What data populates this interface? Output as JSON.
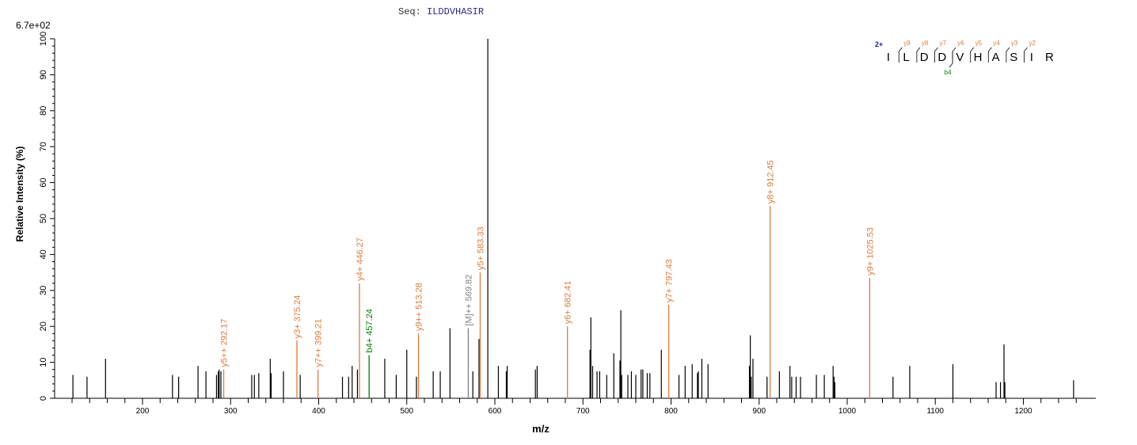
{
  "header": {
    "seq_label": "Seq:",
    "seq_value": "ILDDVHASIR",
    "ymax_label": "6.7e+02"
  },
  "colors": {
    "peak": "#000000",
    "y_ion": "#e07b3a",
    "b_ion": "#008000",
    "precursor": "#808080",
    "charge": "#1a1aa0",
    "axis": "#000000"
  },
  "sequence_annotation": {
    "charge": "2+",
    "residues": [
      "I",
      "L",
      "D",
      "D",
      "V",
      "H",
      "A",
      "S",
      "I",
      "R"
    ],
    "y_labels": [
      "y9",
      "y8",
      "y7",
      "y6",
      "y5",
      "y4",
      "y3",
      "y2"
    ],
    "b_labels": [
      "b4"
    ]
  },
  "chart_data": {
    "type": "bar",
    "title": "Seq: ILDDVHASIR",
    "xlabel": "m/z",
    "ylabel": "Relative   Intensity (%)",
    "xlim": [
      100,
      1290
    ],
    "ylim": [
      0,
      100
    ],
    "x_ticks": [
      200,
      300,
      400,
      500,
      600,
      700,
      800,
      900,
      1000,
      1100,
      1200
    ],
    "y_ticks": [
      0,
      10,
      20,
      30,
      40,
      50,
      60,
      70,
      80,
      90,
      100
    ],
    "max_intensity_label": "6.7e+02",
    "annotated_peaks": [
      {
        "label": "y5++ 292.17",
        "mz": 292.17,
        "intensity": 8,
        "type": "y"
      },
      {
        "label": "y3+ 375.24",
        "mz": 375.24,
        "intensity": 16,
        "type": "y"
      },
      {
        "label": "y7++ 399.21",
        "mz": 399.21,
        "intensity": 8,
        "type": "y"
      },
      {
        "label": "y4+ 446.27",
        "mz": 446.27,
        "intensity": 32,
        "type": "y"
      },
      {
        "label": "b4+ 457.24",
        "mz": 457.24,
        "intensity": 12,
        "type": "b"
      },
      {
        "label": "y9++ 513.28",
        "mz": 513.28,
        "intensity": 18,
        "type": "y"
      },
      {
        "label": "[M]++ 569.82",
        "mz": 569.82,
        "intensity": 19.5,
        "type": "precursor"
      },
      {
        "label": "y5+ 583.33",
        "mz": 583.33,
        "intensity": 35,
        "type": "y"
      },
      {
        "label": "y6+ 682.41",
        "mz": 682.41,
        "intensity": 20,
        "type": "y"
      },
      {
        "label": "y7+ 797.43",
        "mz": 797.43,
        "intensity": 26,
        "type": "y"
      },
      {
        "label": "y8+ 912.45",
        "mz": 912.45,
        "intensity": 53.5,
        "type": "y"
      },
      {
        "label": "y9+ 1025.53",
        "mz": 1025.53,
        "intensity": 33.5,
        "type": "y"
      }
    ],
    "peaks": [
      [
        121,
        6.5
      ],
      [
        137,
        6
      ],
      [
        158,
        11
      ],
      [
        234,
        6.5
      ],
      [
        241,
        6
      ],
      [
        263,
        9
      ],
      [
        272,
        7.5
      ],
      [
        284,
        6.5
      ],
      [
        286,
        7.5
      ],
      [
        287,
        8
      ],
      [
        289,
        7.5
      ],
      [
        324,
        6.5
      ],
      [
        327,
        6.5
      ],
      [
        332,
        7
      ],
      [
        345,
        11
      ],
      [
        346,
        7
      ],
      [
        360,
        7.5
      ],
      [
        379,
        6.5
      ],
      [
        427,
        6
      ],
      [
        434,
        6
      ],
      [
        438,
        9
      ],
      [
        444,
        8
      ],
      [
        475,
        11
      ],
      [
        488,
        6.5
      ],
      [
        500,
        13.5
      ],
      [
        511,
        6
      ],
      [
        530,
        7.5
      ],
      [
        538,
        7.5
      ],
      [
        549,
        19.5
      ],
      [
        575,
        7.5
      ],
      [
        582,
        16.5
      ],
      [
        592,
        100
      ],
      [
        604,
        9
      ],
      [
        613,
        7.5
      ],
      [
        614,
        9
      ],
      [
        646,
        8
      ],
      [
        648,
        9
      ],
      [
        708,
        13.5
      ],
      [
        709,
        22.5
      ],
      [
        711,
        9
      ],
      [
        716,
        7.5
      ],
      [
        719,
        7.5
      ],
      [
        727,
        6.5
      ],
      [
        735,
        12.5
      ],
      [
        742,
        10.5
      ],
      [
        743,
        24.5
      ],
      [
        744,
        6.5
      ],
      [
        751,
        6.5
      ],
      [
        755,
        7.5
      ],
      [
        760,
        6.5
      ],
      [
        766,
        8
      ],
      [
        768,
        8
      ],
      [
        773,
        7
      ],
      [
        776,
        7
      ],
      [
        789,
        13.5
      ],
      [
        809,
        6.5
      ],
      [
        816,
        9
      ],
      [
        824,
        9.5
      ],
      [
        830,
        7
      ],
      [
        831,
        7.5
      ],
      [
        835,
        11
      ],
      [
        842,
        9.5
      ],
      [
        889,
        9
      ],
      [
        890,
        17.5
      ],
      [
        891,
        6
      ],
      [
        893,
        11
      ],
      [
        909,
        6
      ],
      [
        923,
        7.5
      ],
      [
        935,
        9
      ],
      [
        937,
        6
      ],
      [
        942,
        6
      ],
      [
        947,
        6
      ],
      [
        965,
        6.5
      ],
      [
        974,
        6.5
      ],
      [
        984,
        9
      ],
      [
        985,
        6
      ],
      [
        986,
        4.5
      ],
      [
        1052,
        6
      ],
      [
        1071,
        9
      ],
      [
        1120,
        9.5
      ],
      [
        1169,
        4.5
      ],
      [
        1174,
        4.5
      ],
      [
        1178,
        15
      ],
      [
        1179,
        4.5
      ],
      [
        1257,
        5
      ]
    ]
  }
}
